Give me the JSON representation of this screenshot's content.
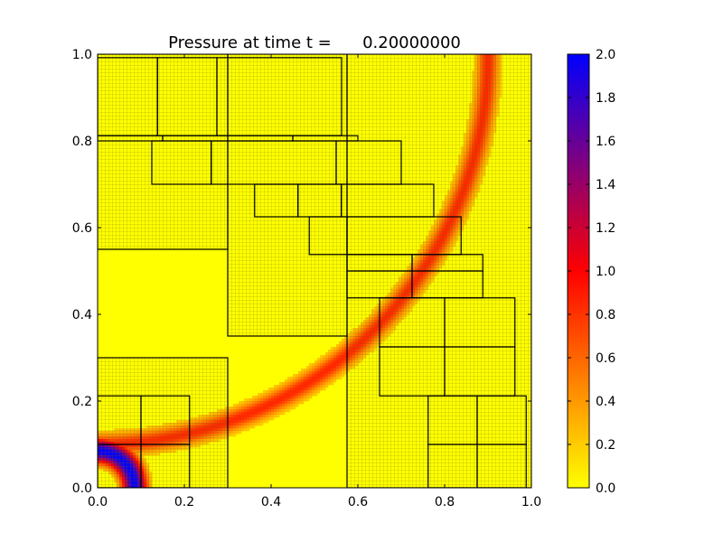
{
  "chart_data": {
    "type": "heatmap",
    "title": "Pressure at time t =      0.20000000",
    "xlabel": "",
    "ylabel": "",
    "xlim": [
      0.0,
      1.0
    ],
    "ylim": [
      0.0,
      1.0
    ],
    "x_ticks": [
      "0.0",
      "0.2",
      "0.4",
      "0.6",
      "0.8",
      "1.0"
    ],
    "y_ticks": [
      "0.0",
      "0.2",
      "0.4",
      "0.6",
      "0.8",
      "1.0"
    ],
    "colorbar": {
      "range": [
        0.0,
        2.0
      ],
      "ticks": [
        "0.0",
        "0.2",
        "0.4",
        "0.6",
        "0.8",
        "1.0",
        "1.2",
        "1.4",
        "1.6",
        "1.8",
        "2.0"
      ],
      "colors": [
        "#ffff00",
        "#ff0000",
        "#0000ff"
      ]
    },
    "field": {
      "background_value": 0.1,
      "outer_ring": {
        "center": [
          0.0,
          1.0
        ],
        "radius": 0.9,
        "half_width": 0.025,
        "peak_value": 0.75
      },
      "inner_ring": {
        "center": [
          0.0,
          0.0
        ],
        "radius": 0.085,
        "half_width": 0.03,
        "peak_value": 2.0
      }
    },
    "amr_patches": [
      {
        "level": 1,
        "x": [
          0.0,
          0.3
        ],
        "y": [
          0.0,
          0.3
        ]
      },
      {
        "level": 1,
        "x": [
          0.0,
          0.3
        ],
        "y": [
          0.55,
          1.0
        ]
      },
      {
        "level": 1,
        "x": [
          0.3,
          0.575
        ],
        "y": [
          0.35,
          1.0
        ]
      },
      {
        "level": 1,
        "x": [
          0.575,
          1.0
        ],
        "y": [
          0.0,
          1.0
        ]
      },
      {
        "level": 2,
        "x": [
          0.0,
          0.1
        ],
        "y": [
          0.0,
          0.1
        ]
      },
      {
        "level": 2,
        "x": [
          0.1,
          0.212
        ],
        "y": [
          0.0,
          0.1
        ]
      },
      {
        "level": 2,
        "x": [
          0.0,
          0.1
        ],
        "y": [
          0.1,
          0.212
        ]
      },
      {
        "level": 2,
        "x": [
          0.1,
          0.212
        ],
        "y": [
          0.1,
          0.212
        ]
      },
      {
        "level": 2,
        "x": [
          0.0,
          0.138
        ],
        "y": [
          0.812,
          0.992
        ]
      },
      {
        "level": 2,
        "x": [
          0.138,
          0.275
        ],
        "y": [
          0.812,
          0.992
        ]
      },
      {
        "level": 2,
        "x": [
          0.275,
          0.5625
        ],
        "y": [
          0.812,
          0.992
        ]
      },
      {
        "level": 2,
        "x": [
          0.0,
          0.15
        ],
        "y": [
          0.8,
          0.812
        ]
      },
      {
        "level": 2,
        "x": [
          0.15,
          0.45
        ],
        "y": [
          0.8,
          0.812
        ]
      },
      {
        "level": 2,
        "x": [
          0.45,
          0.6
        ],
        "y": [
          0.8,
          0.812
        ]
      },
      {
        "level": 2,
        "x": [
          0.125,
          0.262
        ],
        "y": [
          0.7,
          0.8
        ]
      },
      {
        "level": 2,
        "x": [
          0.262,
          0.55
        ],
        "y": [
          0.7,
          0.8
        ]
      },
      {
        "level": 2,
        "x": [
          0.55,
          0.7
        ],
        "y": [
          0.7,
          0.8
        ]
      },
      {
        "level": 2,
        "x": [
          0.362,
          0.462
        ],
        "y": [
          0.625,
          0.7
        ]
      },
      {
        "level": 2,
        "x": [
          0.462,
          0.562
        ],
        "y": [
          0.625,
          0.7
        ]
      },
      {
        "level": 2,
        "x": [
          0.562,
          0.775
        ],
        "y": [
          0.625,
          0.7
        ]
      },
      {
        "level": 2,
        "x": [
          0.488,
          0.575
        ],
        "y": [
          0.538,
          0.625
        ]
      },
      {
        "level": 2,
        "x": [
          0.575,
          0.838
        ],
        "y": [
          0.538,
          0.625
        ]
      },
      {
        "level": 2,
        "x": [
          0.575,
          0.725
        ],
        "y": [
          0.5,
          0.538
        ]
      },
      {
        "level": 2,
        "x": [
          0.725,
          0.888
        ],
        "y": [
          0.5,
          0.538
        ]
      },
      {
        "level": 2,
        "x": [
          0.575,
          0.725
        ],
        "y": [
          0.438,
          0.5
        ]
      },
      {
        "level": 2,
        "x": [
          0.725,
          0.888
        ],
        "y": [
          0.438,
          0.5
        ]
      },
      {
        "level": 2,
        "x": [
          0.65,
          0.8
        ],
        "y": [
          0.325,
          0.438
        ]
      },
      {
        "level": 2,
        "x": [
          0.8,
          0.962
        ],
        "y": [
          0.325,
          0.438
        ]
      },
      {
        "level": 2,
        "x": [
          0.65,
          0.8
        ],
        "y": [
          0.212,
          0.325
        ]
      },
      {
        "level": 2,
        "x": [
          0.8,
          0.962
        ],
        "y": [
          0.212,
          0.325
        ]
      },
      {
        "level": 2,
        "x": [
          0.762,
          0.875
        ],
        "y": [
          0.1,
          0.212
        ]
      },
      {
        "level": 2,
        "x": [
          0.875,
          0.988
        ],
        "y": [
          0.1,
          0.212
        ]
      },
      {
        "level": 2,
        "x": [
          0.762,
          0.875
        ],
        "y": [
          0.0,
          0.1
        ]
      },
      {
        "level": 2,
        "x": [
          0.875,
          0.988
        ],
        "y": [
          0.0,
          0.1
        ]
      }
    ]
  }
}
